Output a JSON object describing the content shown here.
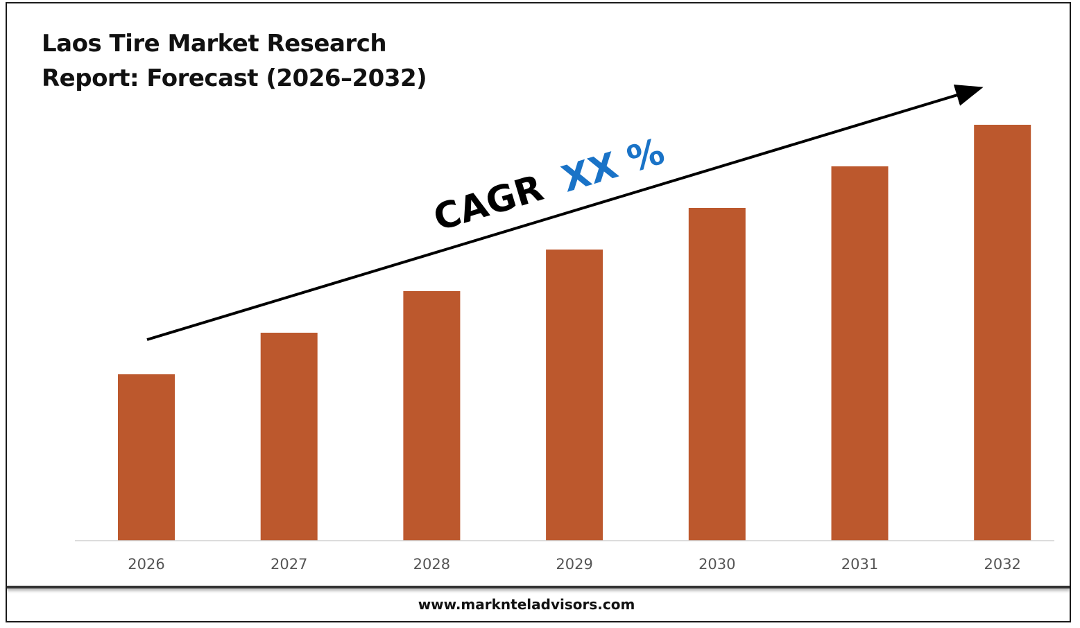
{
  "header": {
    "title_line1": "Laos Tire Market Research",
    "title_line2": "Report: Forecast (2026–2032)"
  },
  "annotation": {
    "cagr_label": "CAGR",
    "cagr_value": "XX %",
    "cagr_value_color": "#1a73c7"
  },
  "footer": {
    "website": "www.marknteladvisors.com"
  },
  "colors": {
    "bar": "#bc582d",
    "axis": "#d0d0d0",
    "tick_text": "#555555"
  },
  "chart_data": {
    "type": "bar",
    "categories": [
      "2026",
      "2027",
      "2028",
      "2029",
      "2030",
      "2031",
      "2032"
    ],
    "values": [
      40,
      50,
      60,
      70,
      80,
      90,
      100
    ],
    "ylim": [
      0,
      110
    ],
    "grid": false,
    "legend": false
  }
}
